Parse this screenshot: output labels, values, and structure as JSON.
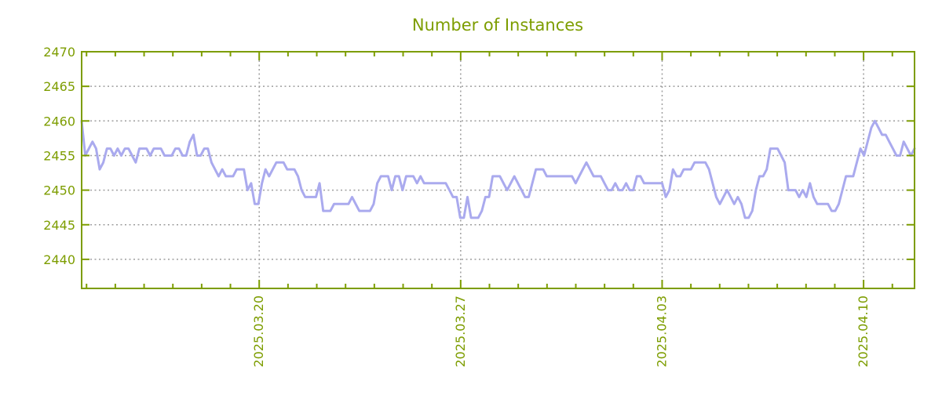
{
  "title": "Number of Instances",
  "colors": {
    "axis": "#7d9d00",
    "text": "#7d9d00",
    "grid": "#9e9e9e",
    "line": "#aaaaee",
    "background": "#ffffff"
  },
  "chart_data": {
    "type": "line",
    "title": "Number of Instances",
    "xlabel": "",
    "ylabel": "",
    "legend": "none",
    "grid": true,
    "x_tick_labels": [
      "2025.03.20",
      "2025.03.27",
      "2025.04.03",
      "2025.04.10"
    ],
    "x_tick_day_offsets": [
      6.17,
      13.17,
      20.17,
      27.17
    ],
    "x_first_minor_tick_day_offset": 0.17,
    "x_minor_tick_interval_days": 1,
    "x_total_days": 28.94,
    "y_ticks": [
      2440,
      2445,
      2450,
      2455,
      2460,
      2465,
      2470
    ],
    "ylim": [
      2435.8,
      2470
    ],
    "series": [
      {
        "name": "Number of Instances",
        "values": [
          2460,
          2455,
          2456,
          2457,
          2456,
          2453,
          2454,
          2456,
          2456,
          2455,
          2456,
          2455,
          2456,
          2456,
          2455,
          2454,
          2456,
          2456,
          2456,
          2455,
          2456,
          2456,
          2456,
          2455,
          2455,
          2455,
          2456,
          2456,
          2455,
          2455,
          2457,
          2458,
          2455,
          2455,
          2456,
          2456,
          2454,
          2453,
          2452,
          2453,
          2452,
          2452,
          2452,
          2453,
          2453,
          2453,
          2450,
          2451,
          2448,
          2448,
          2451,
          2453,
          2452,
          2453,
          2454,
          2454,
          2454,
          2453,
          2453,
          2453,
          2452,
          2450,
          2449,
          2449,
          2449,
          2449,
          2451,
          2447,
          2447,
          2447,
          2448,
          2448,
          2448,
          2448,
          2448,
          2449,
          2448,
          2447,
          2447,
          2447,
          2447,
          2448,
          2451,
          2452,
          2452,
          2452,
          2450,
          2452,
          2452,
          2450,
          2452,
          2452,
          2452,
          2451,
          2452,
          2451,
          2451,
          2451,
          2451,
          2451,
          2451,
          2451,
          2450,
          2449,
          2449,
          2446,
          2446,
          2449,
          2446,
          2446,
          2446,
          2447,
          2449,
          2449,
          2452,
          2452,
          2452,
          2451,
          2450,
          2451,
          2452,
          2451,
          2450,
          2449,
          2449,
          2451,
          2453,
          2453,
          2453,
          2452,
          2452,
          2452,
          2452,
          2452,
          2452,
          2452,
          2452,
          2451,
          2452,
          2453,
          2454,
          2453,
          2452,
          2452,
          2452,
          2451,
          2450,
          2450,
          2451,
          2450,
          2450,
          2451,
          2450,
          2450,
          2452,
          2452,
          2451,
          2451,
          2451,
          2451,
          2451,
          2451,
          2449,
          2450,
          2453,
          2452,
          2452,
          2453,
          2453,
          2453,
          2454,
          2454,
          2454,
          2454,
          2453,
          2451,
          2449,
          2448,
          2449,
          2450,
          2449,
          2448,
          2449,
          2448,
          2446,
          2446,
          2447,
          2450,
          2452,
          2452,
          2453,
          2456,
          2456,
          2456,
          2455,
          2454,
          2450,
          2450,
          2450,
          2449,
          2450,
          2449,
          2451,
          2449,
          2448,
          2448,
          2448,
          2448,
          2447,
          2447,
          2448,
          2450,
          2452,
          2452,
          2452,
          2454,
          2456,
          2455,
          2457,
          2459,
          2460,
          2459,
          2458,
          2458,
          2457,
          2456,
          2455,
          2455,
          2457,
          2456,
          2455,
          2456
        ]
      }
    ]
  }
}
